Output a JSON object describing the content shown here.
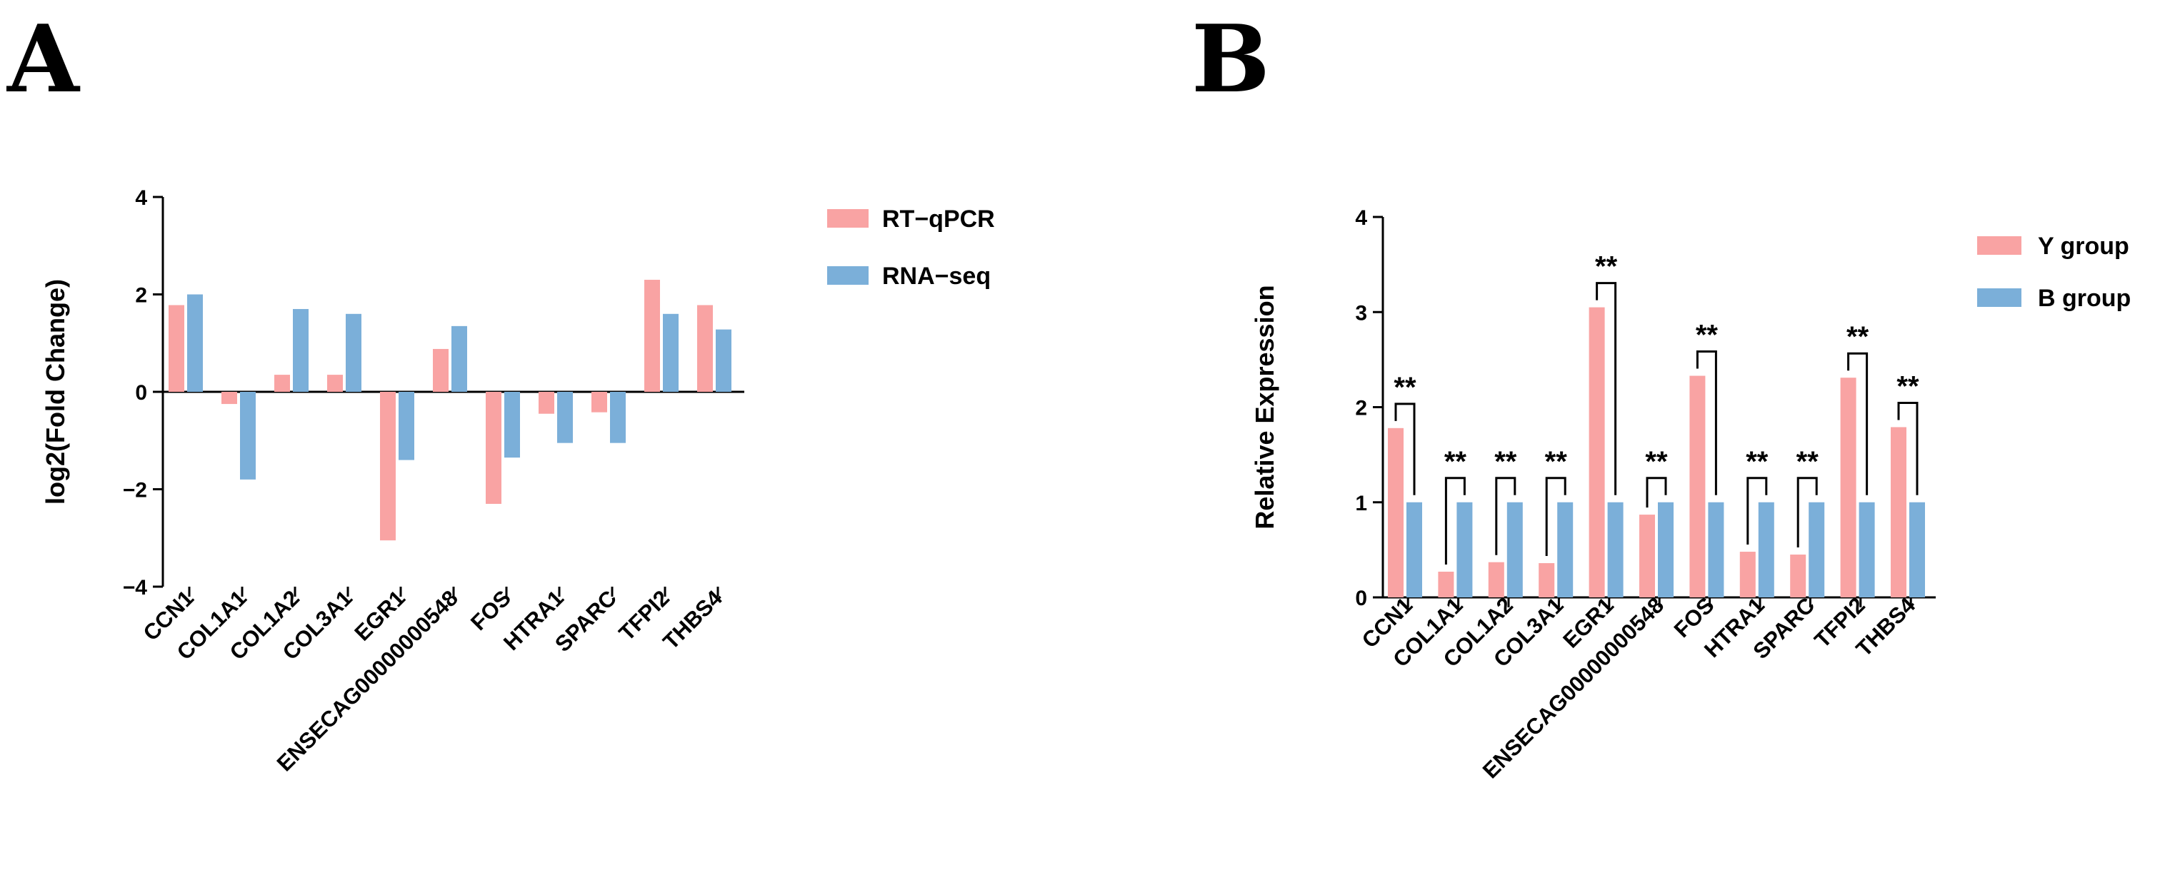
{
  "chart_data": [
    {
      "panel": "A",
      "type": "bar",
      "title": "",
      "xlabel": "",
      "ylabel": "log2(Fold Change)",
      "ylim": [
        -4,
        4
      ],
      "yticks": [
        "−4",
        "−2",
        "0",
        "2",
        "4"
      ],
      "ytick_values": [
        -4,
        -2,
        0,
        2,
        4
      ],
      "grid": false,
      "legend_position": "top-right",
      "categories": [
        "CCN1",
        "COL1A1",
        "COL1A2",
        "COL3A1",
        "EGR1",
        "ENSECAG00000000548",
        "FOS",
        "HTRA1",
        "SPARC",
        "TFPI2",
        "THBS4"
      ],
      "series": [
        {
          "name": "RT−qPCR",
          "color": "#F9A3A3",
          "values": [
            1.78,
            -0.25,
            0.35,
            0.35,
            -3.05,
            0.88,
            -2.3,
            -0.45,
            -0.42,
            2.3,
            1.78
          ]
        },
        {
          "name": "RNA−seq",
          "color": "#7BAFD9",
          "values": [
            2.0,
            -1.8,
            1.7,
            1.6,
            -1.4,
            1.35,
            -1.35,
            -1.05,
            -1.05,
            1.6,
            1.28
          ]
        }
      ]
    },
    {
      "panel": "B",
      "type": "bar",
      "title": "",
      "xlabel": "",
      "ylabel": "Relative Expression",
      "ylim": [
        0,
        4
      ],
      "yticks": [
        "0",
        "1",
        "2",
        "3",
        "4"
      ],
      "ytick_values": [
        0,
        1,
        2,
        3,
        4
      ],
      "grid": false,
      "legend_position": "top-right",
      "categories": [
        "CCN1",
        "COL1A1",
        "COL1A2",
        "COL3A1",
        "EGR1",
        "ENSECAG00000000548",
        "FOS",
        "HTRA1",
        "SPARC",
        "TFPI2",
        "THBS4"
      ],
      "series": [
        {
          "name": "Y group",
          "color": "#F9A3A3",
          "values": [
            1.78,
            0.27,
            0.37,
            0.36,
            3.05,
            0.87,
            2.33,
            0.48,
            0.45,
            2.31,
            1.79
          ]
        },
        {
          "name": "B group",
          "color": "#7BAFD9",
          "values": [
            1.0,
            1.0,
            1.0,
            1.0,
            1.0,
            1.0,
            1.0,
            1.0,
            1.0,
            1.0,
            1.0
          ]
        }
      ],
      "significance": [
        "**",
        "**",
        "**",
        "**",
        "**",
        "**",
        "**",
        "**",
        "**",
        "**",
        "**"
      ]
    }
  ]
}
